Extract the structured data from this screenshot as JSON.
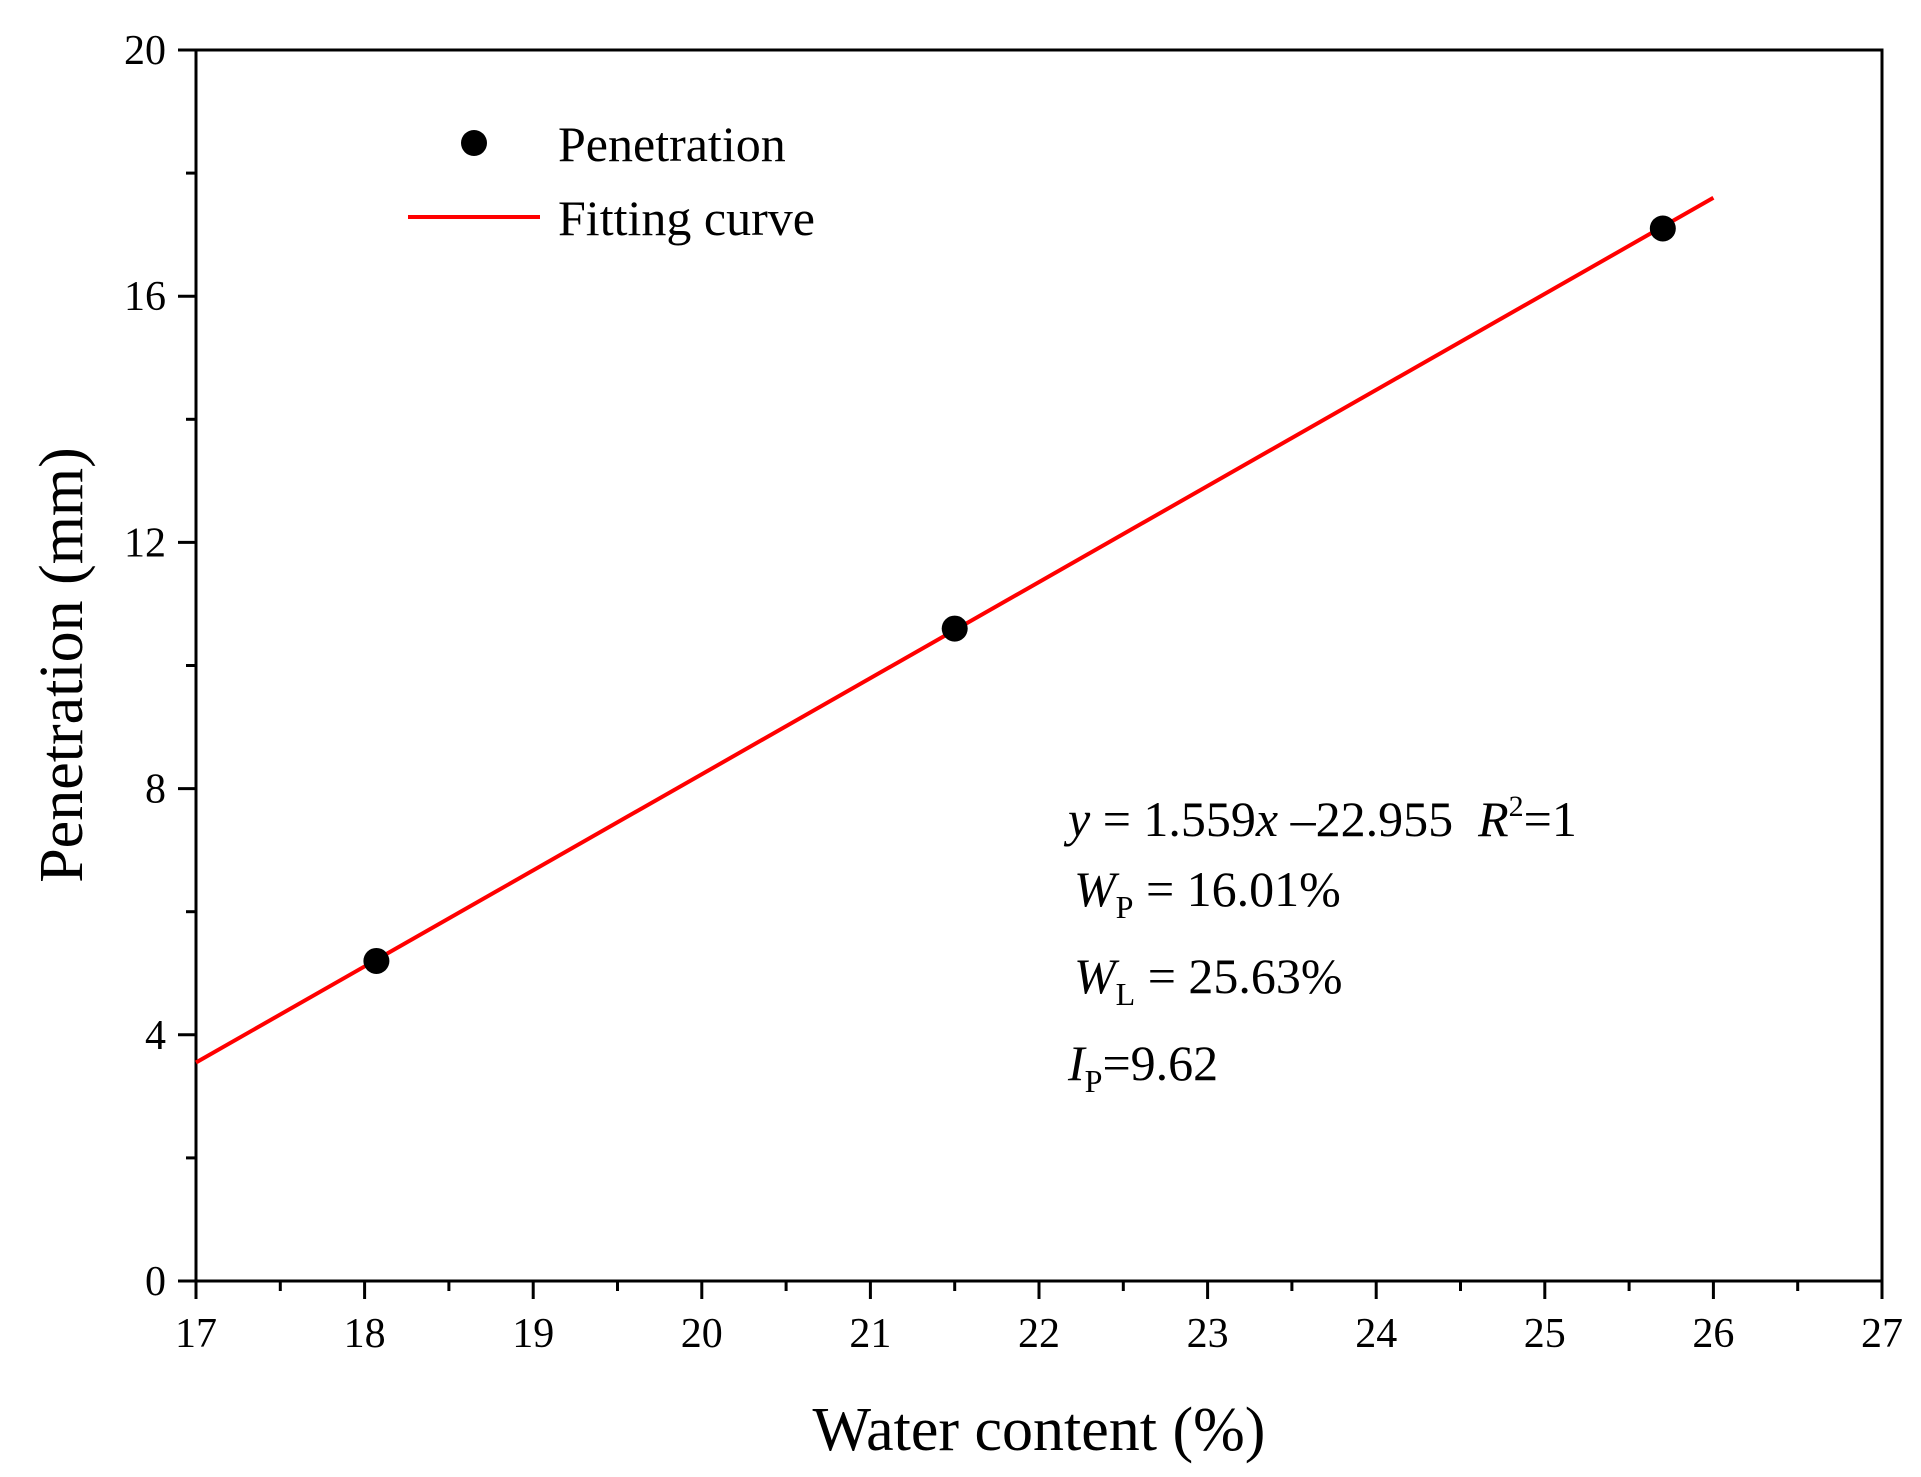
{
  "chart_data": {
    "type": "scatter",
    "xlabel": "Water content (%)",
    "ylabel": "Penetration (mm)",
    "xlim": [
      17,
      27
    ],
    "ylim": [
      0,
      20
    ],
    "xticks": [
      "17",
      "18",
      "19",
      "20",
      "21",
      "22",
      "23",
      "24",
      "25",
      "26",
      "27"
    ],
    "yticks": [
      "0",
      "4",
      "8",
      "12",
      "16",
      "20"
    ],
    "series": [
      {
        "name": "Penetration",
        "kind": "scatter",
        "color": "#000000",
        "x": [
          18.07,
          21.5,
          25.7
        ],
        "y": [
          5.2,
          10.6,
          17.1
        ]
      },
      {
        "name": "Fitting curve",
        "kind": "line",
        "color": "#ff0000",
        "x": [
          17,
          26
        ],
        "y": [
          3.55,
          17.6
        ]
      }
    ],
    "legend": {
      "position": "top-left",
      "items": [
        {
          "label": "Penetration",
          "marker": "dot"
        },
        {
          "label": "Fitting curve",
          "marker": "line"
        }
      ]
    },
    "annotations": {
      "equation": {
        "y": "y",
        "eq1": " = 1.559",
        "x": "x",
        "eq2": " –22.955  ",
        "R": "R",
        "sup2": "2",
        "eq3": "=1"
      },
      "wp": {
        "W": "W",
        "sub": "P",
        "value": " = 16.01%"
      },
      "wl": {
        "W": "W",
        "sub": "L",
        "value": " = 25.63%"
      },
      "ip": {
        "I": "I",
        "sub": "P",
        "value": "=9.62"
      }
    }
  }
}
